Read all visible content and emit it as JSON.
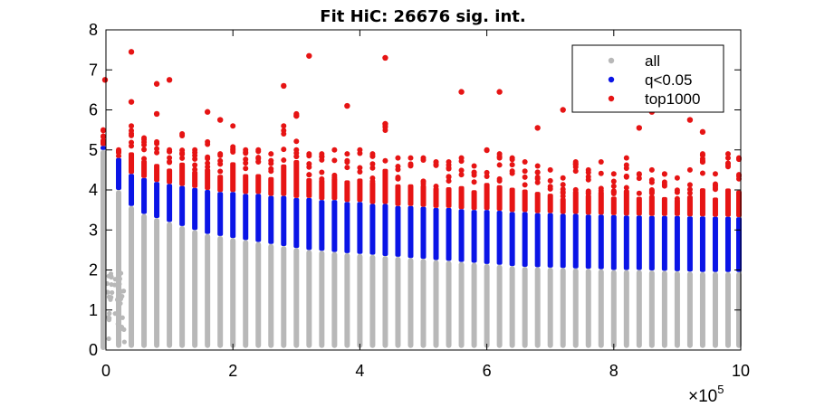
{
  "chart_data": {
    "type": "scatter",
    "title": "Fit HiC: 26676 sig. int.",
    "xlabel": "",
    "ylabel": "",
    "xlim": [
      0,
      10
    ],
    "ylim": [
      0,
      8
    ],
    "x_ticks": [
      "0",
      "2",
      "4",
      "6",
      "8",
      "10"
    ],
    "y_ticks": [
      "0",
      "1",
      "2",
      "3",
      "4",
      "5",
      "6",
      "7",
      "8"
    ],
    "x_exponent": {
      "base": "×10",
      "power": "5"
    },
    "grid": false,
    "legend_position": "top-right",
    "colors": {
      "all": "#b8b8b8",
      "sig": "#0a14e6",
      "top": "#e61414"
    },
    "series": [
      {
        "name": "all",
        "marker": "dot",
        "color": "#b8b8b8"
      },
      {
        "name": "q<0.05",
        "marker": "dot",
        "color": "#0a14e6"
      },
      {
        "name": "top1000",
        "marker": "dot",
        "color": "#e61414"
      }
    ],
    "distance_bins": [
      0,
      0.2,
      0.4,
      0.6,
      0.8,
      1.0,
      1.2,
      1.4,
      1.6,
      1.8,
      2.0,
      2.2,
      2.4,
      2.6,
      2.8,
      3.0,
      3.2,
      3.4,
      3.6,
      3.8,
      4.0,
      4.2,
      4.4,
      4.6,
      4.8,
      5.0,
      5.2,
      5.4,
      5.6,
      5.8,
      6.0,
      6.2,
      6.4,
      6.6,
      6.8,
      7.0,
      7.2,
      7.4,
      7.6,
      7.8,
      8.0,
      8.2,
      8.4,
      8.6,
      8.8,
      9.0,
      9.2,
      9.4,
      9.6,
      9.8,
      10.0
    ],
    "all_max": [
      5.0,
      4.0,
      3.6,
      3.4,
      3.3,
      3.2,
      3.1,
      3.0,
      2.9,
      2.85,
      2.8,
      2.75,
      2.7,
      2.65,
      2.6,
      2.55,
      2.5,
      2.48,
      2.45,
      2.42,
      2.4,
      2.38,
      2.35,
      2.33,
      2.3,
      2.28,
      2.25,
      2.23,
      2.2,
      2.18,
      2.15,
      2.13,
      2.1,
      2.08,
      2.07,
      2.06,
      2.05,
      2.04,
      2.03,
      2.02,
      2.0,
      2.0,
      2.0,
      1.99,
      1.98,
      1.97,
      1.96,
      1.95,
      1.95,
      1.95,
      1.95
    ],
    "sig_max": [
      5.1,
      4.8,
      4.4,
      4.3,
      4.2,
      4.15,
      4.1,
      4.05,
      4.0,
      3.95,
      3.95,
      3.9,
      3.9,
      3.85,
      3.85,
      3.8,
      3.8,
      3.75,
      3.75,
      3.7,
      3.7,
      3.65,
      3.65,
      3.6,
      3.6,
      3.58,
      3.55,
      3.55,
      3.52,
      3.5,
      3.5,
      3.48,
      3.45,
      3.45,
      3.42,
      3.42,
      3.4,
      3.4,
      3.38,
      3.38,
      3.37,
      3.36,
      3.36,
      3.35,
      3.35,
      3.35,
      3.34,
      3.34,
      3.33,
      3.33,
      3.32
    ],
    "top_max": [
      5.5,
      5.0,
      5.6,
      5.3,
      5.2,
      5.0,
      5.4,
      5.0,
      5.2,
      4.9,
      5.6,
      5.0,
      5.0,
      4.9,
      5.6,
      5.9,
      4.9,
      4.9,
      5.0,
      4.9,
      5.0,
      4.9,
      5.6,
      4.8,
      4.8,
      4.8,
      4.7,
      4.7,
      4.8,
      4.6,
      5.0,
      4.9,
      4.8,
      4.7,
      4.6,
      4.5,
      4.3,
      4.7,
      4.5,
      4.7,
      4.4,
      4.8,
      4.4,
      4.5,
      4.4,
      4.3,
      4.5,
      4.9,
      4.4,
      4.9,
      4.8
    ],
    "outliers": [
      {
        "x": 0.0,
        "y": 6.75
      },
      {
        "x": 0.4,
        "y": 7.45
      },
      {
        "x": 0.4,
        "y": 6.2
      },
      {
        "x": 0.8,
        "y": 6.65
      },
      {
        "x": 0.8,
        "y": 5.9
      },
      {
        "x": 1.0,
        "y": 6.75
      },
      {
        "x": 1.6,
        "y": 5.95
      },
      {
        "x": 1.8,
        "y": 5.75
      },
      {
        "x": 2.8,
        "y": 6.6
      },
      {
        "x": 3.0,
        "y": 5.85
      },
      {
        "x": 3.2,
        "y": 7.35
      },
      {
        "x": 3.8,
        "y": 6.1
      },
      {
        "x": 4.4,
        "y": 7.3
      },
      {
        "x": 4.4,
        "y": 5.65
      },
      {
        "x": 5.6,
        "y": 6.45
      },
      {
        "x": 6.2,
        "y": 6.45
      },
      {
        "x": 6.8,
        "y": 5.55
      },
      {
        "x": 7.2,
        "y": 6.0
      },
      {
        "x": 8.4,
        "y": 5.55
      },
      {
        "x": 8.6,
        "y": 5.95
      },
      {
        "x": 9.2,
        "y": 5.75
      },
      {
        "x": 9.4,
        "y": 5.45
      }
    ],
    "legend": [
      "all",
      "q<0.05",
      "top1000"
    ]
  }
}
